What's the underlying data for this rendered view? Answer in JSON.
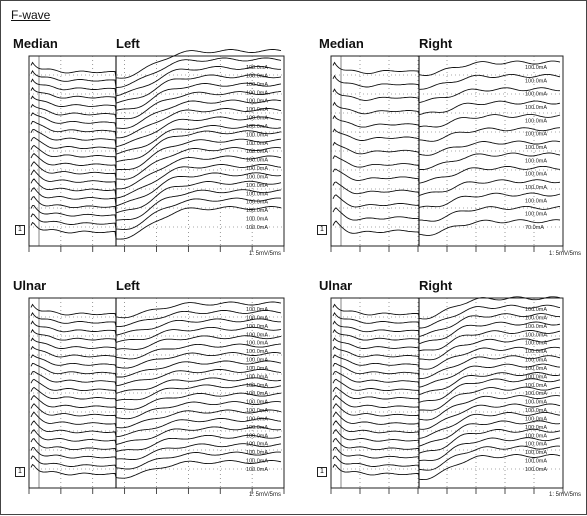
{
  "title": "F-wave",
  "chart_data": [
    {
      "type": "line",
      "nerve": "Median",
      "side": "Left",
      "scale": "1: 5mV/5ms",
      "marker": "1",
      "stimulus_labels": [
        "100.0mA",
        "100.0mA",
        "100.0mA",
        "100.0mA",
        "100.0mA",
        "100.0mA",
        "100.0mA",
        "100.0mA",
        "100.0mA",
        "100.0mA",
        "100.0mA",
        "100.0mA",
        "100.0mA",
        "100.0mA",
        "100.0mA",
        "100.0mA",
        "100.0mA",
        "100.0mA",
        "100.0mA",
        "100.0mA"
      ]
    },
    {
      "type": "line",
      "nerve": "Median",
      "side": "Right",
      "scale": "1: 5mV/5ms",
      "marker": "1",
      "stimulus_labels": [
        "100.0mA",
        "100.0mA",
        "100.0mA",
        "100.0mA",
        "100.0mA",
        "100.0mA",
        "100.0mA",
        "100.0mA",
        "100.0mA",
        "100.0mA",
        "100.0mA",
        "100.0mA",
        "70.0mA"
      ]
    },
    {
      "type": "line",
      "nerve": "Ulnar",
      "side": "Left",
      "scale": "1: 5mV/5ms",
      "marker": "1",
      "stimulus_labels": [
        "100.0mA",
        "100.0mA",
        "100.0mA",
        "100.0mA",
        "100.0mA",
        "100.0mA",
        "100.0mA",
        "100.0mA",
        "100.0mA",
        "100.0mA",
        "100.0mA",
        "100.0mA",
        "100.0mA",
        "100.0mA",
        "100.0mA",
        "100.0mA",
        "100.0mA",
        "100.0mA",
        "100.0mA",
        "100.0mA"
      ]
    },
    {
      "type": "line",
      "nerve": "Ulnar",
      "side": "Right",
      "scale": "1: 5mV/5ms",
      "marker": "1",
      "stimulus_labels": [
        "100.0mA",
        "100.0mA",
        "100.0mA",
        "100.0mA",
        "100.0mA",
        "100.0mA",
        "100.0mA",
        "100.0mA",
        "100.0mA",
        "100.0mA",
        "100.0mA",
        "100.0mA",
        "100.0mA",
        "100.0mA",
        "100.0mA",
        "100.0mA",
        "100.0mA",
        "100.0mA",
        "100.0mA",
        "100.0mA"
      ]
    }
  ]
}
